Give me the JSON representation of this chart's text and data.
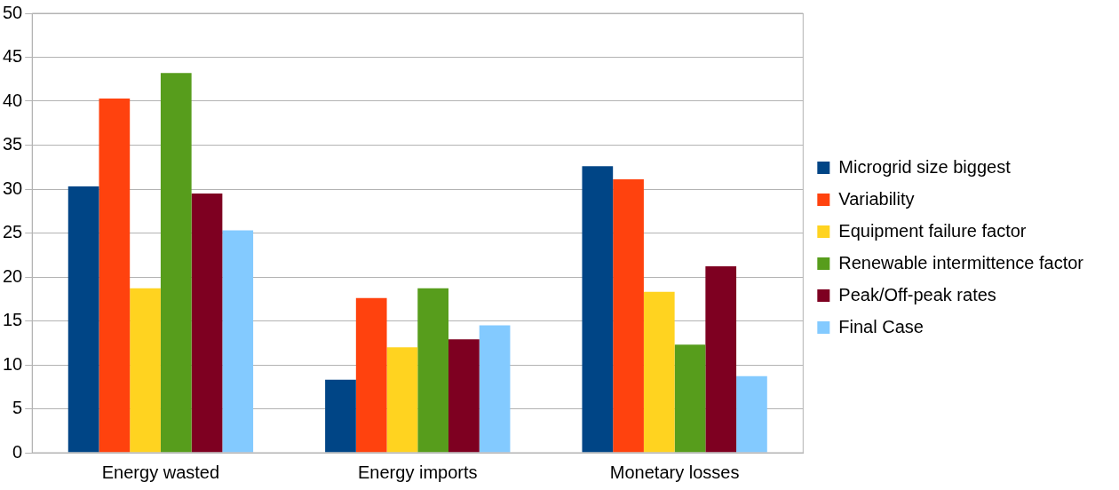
{
  "chart_data": {
    "type": "bar",
    "categories": [
      "Energy wasted",
      "Energy imports",
      "Monetary losses"
    ],
    "series": [
      {
        "name": "Microgrid size biggest",
        "color": "#004586",
        "values": [
          30.3,
          8.3,
          32.6
        ]
      },
      {
        "name": "Variability",
        "color": "#ff420e",
        "values": [
          40.3,
          17.6,
          31.1
        ]
      },
      {
        "name": "Equipment failure factor",
        "color": "#ffd320",
        "values": [
          18.7,
          12.0,
          18.3
        ]
      },
      {
        "name": "Renewable intermittence factor",
        "color": "#579d1c",
        "values": [
          43.2,
          18.7,
          12.3
        ]
      },
      {
        "name": "Peak/Off-peak rates",
        "color": "#7e0021",
        "values": [
          29.5,
          12.9,
          21.2
        ]
      },
      {
        "name": "Final Case",
        "color": "#83caff",
        "values": [
          25.3,
          14.5,
          8.7
        ]
      }
    ],
    "ylim": [
      0,
      50
    ],
    "yticks": [
      0,
      5,
      10,
      15,
      20,
      25,
      30,
      35,
      40,
      45,
      50
    ],
    "grid": "y",
    "legend": "right"
  }
}
